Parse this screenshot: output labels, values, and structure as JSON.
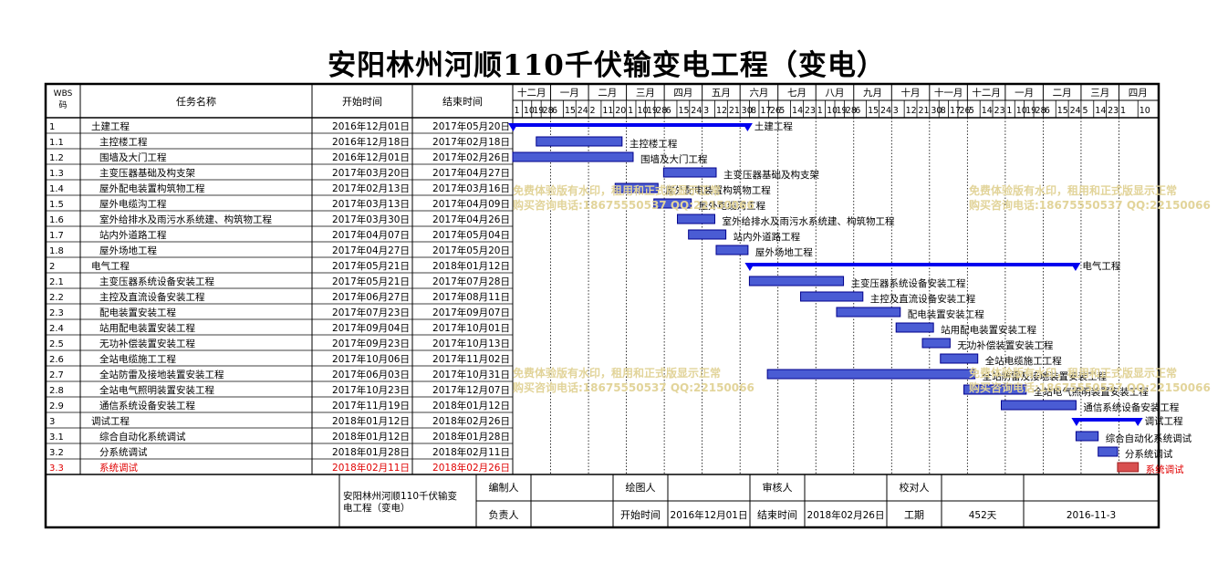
{
  "title": "安阳林州河顺110千伏输变电工程（变电）",
  "header": {
    "wbs": "WBS码",
    "name": "任务名称",
    "start": "开始时间",
    "end": "结束时间"
  },
  "chart_data": {
    "type": "gantt",
    "date_range": [
      "2016-12-01",
      "2018-02-26"
    ],
    "months": [
      {
        "label": "十二月",
        "ticks": [
          "1",
          "10",
          "19",
          "28"
        ]
      },
      {
        "label": "一月",
        "ticks": [
          "6",
          "15",
          "24"
        ]
      },
      {
        "label": "二月",
        "ticks": [
          "2",
          "11",
          "20"
        ]
      },
      {
        "label": "三月",
        "ticks": [
          "1",
          "10",
          "19",
          "28"
        ]
      },
      {
        "label": "四月",
        "ticks": [
          "6",
          "15",
          "24"
        ]
      },
      {
        "label": "五月",
        "ticks": [
          "3",
          "12",
          "21"
        ]
      },
      {
        "label": "六月",
        "ticks": [
          "30",
          "8",
          "17",
          "26"
        ]
      },
      {
        "label": "七月",
        "ticks": [
          "5",
          "14",
          "23"
        ]
      },
      {
        "label": "八月",
        "ticks": [
          "1",
          "10",
          "19",
          "28"
        ]
      },
      {
        "label": "九月",
        "ticks": [
          "6",
          "15",
          "24"
        ]
      },
      {
        "label": "十月",
        "ticks": [
          "3",
          "12",
          "21"
        ]
      },
      {
        "label": "十一月",
        "ticks": [
          "30",
          "8",
          "17",
          "26"
        ]
      },
      {
        "label": "十二月",
        "ticks": [
          "5",
          "14",
          "23"
        ]
      },
      {
        "label": "一月",
        "ticks": [
          "1",
          "10",
          "19",
          "28"
        ]
      },
      {
        "label": "二月",
        "ticks": [
          "6",
          "15",
          "24"
        ]
      },
      {
        "label": "三月",
        "ticks": [
          "5",
          "14",
          "23"
        ]
      },
      {
        "label": "四月",
        "ticks": [
          "1",
          "10"
        ]
      }
    ],
    "tasks": [
      {
        "wbs": "1",
        "name": "土建工程",
        "start_text": "2016年12月01日",
        "end_text": "2017年05月20日",
        "start": "2016-12-01",
        "end": "2017-05-20",
        "summary": true,
        "level": 1,
        "bar_label": "土建工程"
      },
      {
        "wbs": "1.1",
        "name": "主控楼工程",
        "start_text": "2016年12月18日",
        "end_text": "2017年02月18日",
        "start": "2016-12-18",
        "end": "2017-02-18",
        "level": 2,
        "bar_label": "主控楼工程"
      },
      {
        "wbs": "1.2",
        "name": "围墙及大门工程",
        "start_text": "2016年12月01日",
        "end_text": "2017年02月26日",
        "start": "2016-12-01",
        "end": "2017-02-26",
        "level": 2,
        "bar_label": "围墙及大门工程"
      },
      {
        "wbs": "1.3",
        "name": "主变压器基础及构支架",
        "start_text": "2017年03月20日",
        "end_text": "2017年04月27日",
        "start": "2017-03-20",
        "end": "2017-04-27",
        "level": 2,
        "bar_label": "主变压器基础及构支架"
      },
      {
        "wbs": "1.4",
        "name": "屋外配电装置构筑物工程",
        "start_text": "2017年02月13日",
        "end_text": "2017年03月16日",
        "start": "2017-02-13",
        "end": "2017-03-16",
        "level": 2,
        "bar_label": "屋外配电装置构筑物工程"
      },
      {
        "wbs": "1.5",
        "name": "屋外电缆沟工程",
        "start_text": "2017年03月13日",
        "end_text": "2017年04月09日",
        "start": "2017-03-13",
        "end": "2017-04-09",
        "level": 2,
        "bar_label": "屋外电缆沟工程"
      },
      {
        "wbs": "1.6",
        "name": "室外给排水及雨污水系统建、构筑物工程",
        "start_text": "2017年03月30日",
        "end_text": "2017年04月26日",
        "start": "2017-03-30",
        "end": "2017-04-26",
        "level": 2,
        "bar_label": "室外给排水及雨污水系统建、构筑物工程"
      },
      {
        "wbs": "1.7",
        "name": "站内外道路工程",
        "start_text": "2017年04月07日",
        "end_text": "2017年05月04日",
        "start": "2017-04-07",
        "end": "2017-05-04",
        "level": 2,
        "bar_label": "站内外道路工程"
      },
      {
        "wbs": "1.8",
        "name": "屋外场地工程",
        "start_text": "2017年04月27日",
        "end_text": "2017年05月20日",
        "start": "2017-04-27",
        "end": "2017-05-20",
        "level": 2,
        "bar_label": "屋外场地工程"
      },
      {
        "wbs": "2",
        "name": "电气工程",
        "start_text": "2017年05月21日",
        "end_text": "2018年01月12日",
        "start": "2017-05-21",
        "end": "2018-01-12",
        "summary": true,
        "level": 1,
        "bar_label": "电气工程"
      },
      {
        "wbs": "2.1",
        "name": "主变压器系统设备安装工程",
        "start_text": "2017年05月21日",
        "end_text": "2017年07月28日",
        "start": "2017-05-21",
        "end": "2017-07-28",
        "level": 2,
        "bar_label": "主变压器系统设备安装工程"
      },
      {
        "wbs": "2.2",
        "name": "主控及直流设备安装工程",
        "start_text": "2017年06月27日",
        "end_text": "2017年08月11日",
        "start": "2017-06-27",
        "end": "2017-08-11",
        "level": 2,
        "bar_label": "主控及直流设备安装工程"
      },
      {
        "wbs": "2.3",
        "name": "配电装置安装工程",
        "start_text": "2017年07月23日",
        "end_text": "2017年09月07日",
        "start": "2017-07-23",
        "end": "2017-09-07",
        "level": 2,
        "bar_label": "配电装置安装工程"
      },
      {
        "wbs": "2.4",
        "name": "站用配电装置安装工程",
        "start_text": "2017年09月04日",
        "end_text": "2017年10月01日",
        "start": "2017-09-04",
        "end": "2017-10-01",
        "level": 2,
        "bar_label": "站用配电装置安装工程"
      },
      {
        "wbs": "2.5",
        "name": "无功补偿装置安装工程",
        "start_text": "2017年09月23日",
        "end_text": "2017年10月13日",
        "start": "2017-09-23",
        "end": "2017-10-13",
        "level": 2,
        "bar_label": "无功补偿装置安装工程"
      },
      {
        "wbs": "2.6",
        "name": "全站电缆施工工程",
        "start_text": "2017年10月06日",
        "end_text": "2017年11月02日",
        "start": "2017-10-06",
        "end": "2017-11-02",
        "level": 2,
        "bar_label": "全站电缆施工工程"
      },
      {
        "wbs": "2.7",
        "name": "全站防雷及接地装置安装工程",
        "start_text": "2017年06月03日",
        "end_text": "2017年10月31日",
        "start": "2017-06-03",
        "end": "2017-10-31",
        "level": 2,
        "bar_label": "全站防雷及接地装置安装工程"
      },
      {
        "wbs": "2.8",
        "name": "全站电气照明装置安装工程",
        "start_text": "2017年10月23日",
        "end_text": "2017年12月07日",
        "start": "2017-10-23",
        "end": "2017-12-07",
        "level": 2,
        "bar_label": "全站电气照明装置安装工程"
      },
      {
        "wbs": "2.9",
        "name": "通信系统设备安装工程",
        "start_text": "2017年11月19日",
        "end_text": "2018年01月12日",
        "start": "2017-11-19",
        "end": "2018-01-12",
        "level": 2,
        "bar_label": "通信系统设备安装工程"
      },
      {
        "wbs": "3",
        "name": "调试工程",
        "start_text": "2018年01月12日",
        "end_text": "2018年02月26日",
        "start": "2018-01-12",
        "end": "2018-02-26",
        "summary": true,
        "level": 1,
        "bar_label": "调试工程"
      },
      {
        "wbs": "3.1",
        "name": "综合自动化系统调试",
        "start_text": "2018年01月12日",
        "end_text": "2018年01月28日",
        "start": "2018-01-12",
        "end": "2018-01-28",
        "level": 2,
        "bar_label": "综合自动化系统调试"
      },
      {
        "wbs": "3.2",
        "name": "分系统调试",
        "start_text": "2018年01月28日",
        "end_text": "2018年02月11日",
        "start": "2018-01-28",
        "end": "2018-02-11",
        "level": 2,
        "bar_label": "分系统调试"
      },
      {
        "wbs": "3.3",
        "name": "系统调试",
        "start_text": "2018年02月11日",
        "end_text": "2018年02月26日",
        "start": "2018-02-11",
        "end": "2018-02-26",
        "level": 2,
        "critical": true,
        "bar_label": "系统调试"
      }
    ]
  },
  "footer": {
    "project": "安阳林州河顺110千伏输变电工程（变电）",
    "compiler": "编制人",
    "drawer": "绘图人",
    "reviewer": "审核人",
    "checker": "校对人",
    "responsible": "负责人",
    "start_label": "开始时间",
    "start_value": "2016年12月01日",
    "end_label": "结束时间",
    "end_value": "2018年02月26日",
    "duration_label": "工期",
    "duration_value": "452天",
    "date_value": "2016-11-3"
  },
  "watermark": {
    "line1": "免费体验版有水印，租用和正式版显示正常",
    "line2": "购买咨询电话:18675550537 QQ:22150066"
  },
  "colors": {
    "summary_bar": "#0000ee",
    "task_bar": "#4a5cd4",
    "task_border": "#00008b",
    "critical_bar": "#d85050",
    "critical_text": "#e00000",
    "watermark": "#e2d49a"
  }
}
